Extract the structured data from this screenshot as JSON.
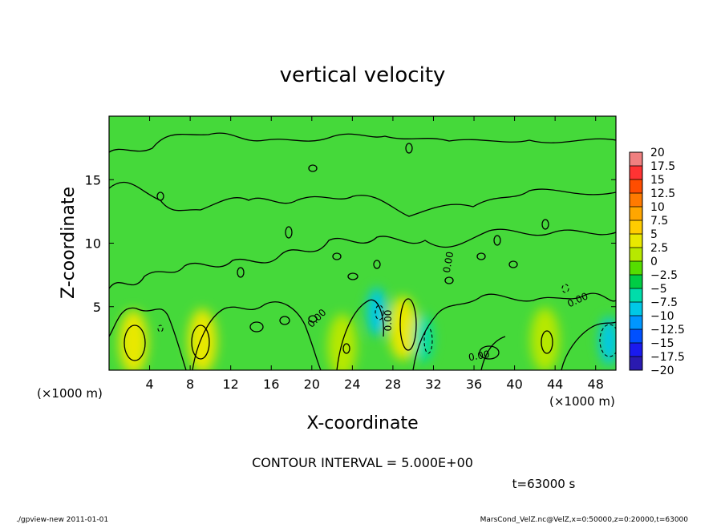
{
  "chart_data": {
    "type": "heatmap",
    "title": "vertical velocity",
    "xlabel": "X-coordinate",
    "ylabel": "Z-coordinate",
    "x_unit_label": "(×1000 m)",
    "y_unit_label": "(×1000 m)",
    "xlim": [
      0,
      50
    ],
    "ylim": [
      0,
      20
    ],
    "x_ticks": [
      4,
      8,
      12,
      16,
      20,
      24,
      28,
      32,
      36,
      40,
      44,
      48
    ],
    "y_ticks": [
      5,
      10,
      15
    ],
    "colorbar": {
      "levels": [
        "20",
        "17.5",
        "15",
        "12.5",
        "10",
        "7.5",
        "5",
        "2.5",
        "0",
        "−2.5",
        "−5",
        "−7.5",
        "−10",
        "−12.5",
        "−15",
        "−17.5",
        "−20"
      ],
      "colors": [
        "#f08080",
        "#ff3333",
        "#ff4d00",
        "#ff7a00",
        "#ffa600",
        "#ffcc00",
        "#e8e800",
        "#b7e800",
        "#55dd00",
        "#00cc44",
        "#00ddaa",
        "#00c8e6",
        "#0096ff",
        "#0050ff",
        "#1a1aee",
        "#2a1ab0",
        "#6a1ab0"
      ]
    },
    "contour_interval": "CONTOUR INTERVAL = 5.000E+00",
    "contour_labels": [
      "0.00",
      "0.00",
      "0.00",
      "0.00",
      "0.00"
    ],
    "positive_cores": [
      {
        "x": 2.4,
        "z": 2.2,
        "value": 5
      },
      {
        "x": 9.2,
        "z": 2.3,
        "value": 5
      },
      {
        "x": 29.0,
        "z": 3.3,
        "value": 5
      },
      {
        "x": 43.0,
        "z": 2.4,
        "value": 4
      },
      {
        "x": 23.0,
        "z": 1.9,
        "value": 3
      }
    ],
    "negative_cores": [
      {
        "x": 26.4,
        "z": 4.6,
        "value": -6
      },
      {
        "x": 31.0,
        "z": 2.5,
        "value": -4
      },
      {
        "x": 49.3,
        "z": 2.3,
        "value": -6
      }
    ]
  },
  "annotations": {
    "time_label": "t=63000 s",
    "footer_left": "./gpview-new  2011-01-01",
    "footer_right": "MarsCond_VelZ.nc@VelZ,x=0:50000,z=0:20000,t=63000"
  }
}
